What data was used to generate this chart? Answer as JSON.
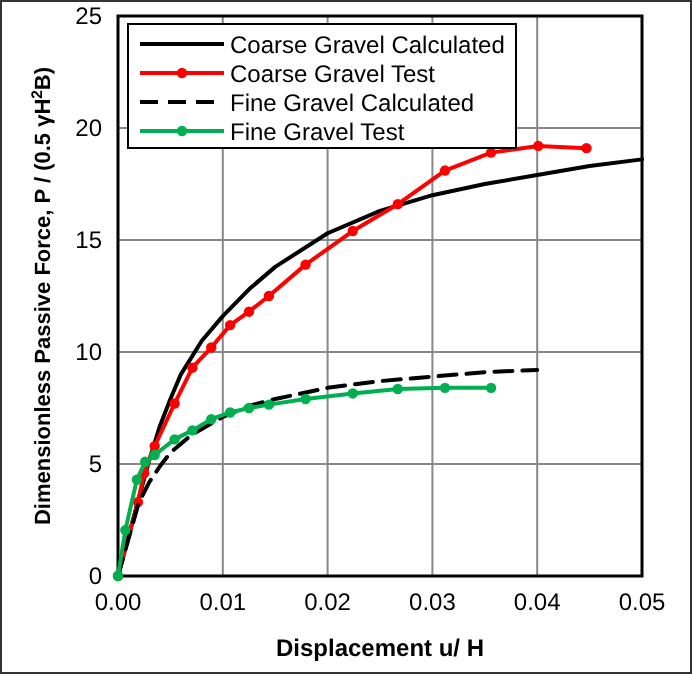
{
  "chart_data": {
    "type": "line",
    "xlabel": "Displacement  u/ H",
    "ylabel": "Dimensionless  Passive Force, P / (0.5 γH$^{2}$B)",
    "xlim": [
      0,
      0.05
    ],
    "xticks": [
      {
        "value": 0,
        "label": "0.00"
      },
      {
        "value": 0.01,
        "label": "0.01"
      },
      {
        "value": 0.02,
        "label": "0.02"
      },
      {
        "value": 0.03,
        "label": "0.03"
      },
      {
        "value": 0.04,
        "label": "0.04"
      },
      {
        "value": 0.05,
        "label": "0.05"
      }
    ],
    "ylim": [
      0,
      25
    ],
    "yticks": [
      0,
      5,
      10,
      15,
      20,
      25
    ],
    "grid": true,
    "legend": "top left",
    "series": [
      {
        "name": "Coarse Gravel Calculated",
        "color": "#000000",
        "marker": "none",
        "line_style": "solid",
        "x": [
          0,
          0.002,
          0.003,
          0.004,
          0.005,
          0.006,
          0.008,
          0.01,
          0.0125,
          0.015,
          0.02,
          0.025,
          0.03,
          0.035,
          0.04,
          0.045,
          0.05
        ],
        "values": [
          0,
          3.5,
          5.2,
          6.7,
          7.9,
          9,
          10.5,
          11.6,
          12.8,
          13.8,
          15.3,
          16.3,
          17,
          17.5,
          17.9,
          18.3,
          18.6
        ]
      },
      {
        "name": "Coarse Gravel Test",
        "color": "#ff0000",
        "marker": "circle",
        "line_style": "solid",
        "x": [
          0,
          0.0019,
          0.0025,
          0.0035,
          0.0054,
          0.0071,
          0.0089,
          0.0107,
          0.0125,
          0.0144,
          0.0179,
          0.0224,
          0.0267,
          0.0312,
          0.0356,
          0.0401,
          0.0447
        ],
        "values": [
          0,
          3.3,
          4.6,
          5.8,
          7.7,
          9.3,
          10.2,
          11.2,
          11.8,
          12.5,
          13.9,
          15.4,
          16.6,
          18.1,
          18.9,
          19.2,
          19.1
        ]
      },
      {
        "name": "Fine Gravel Calculated",
        "color": "#000000",
        "marker": "none",
        "line_style": "dashed",
        "x": [
          0,
          0.002,
          0.003,
          0.004,
          0.005,
          0.007,
          0.01,
          0.0125,
          0.015,
          0.02,
          0.025,
          0.03,
          0.035,
          0.04
        ],
        "values": [
          0,
          3.3,
          4.2,
          4.9,
          5.5,
          6.3,
          7.1,
          7.6,
          7.9,
          8.4,
          8.7,
          8.9,
          9.1,
          9.2
        ]
      },
      {
        "name": "Fine Gravel Test",
        "color": "#00b050",
        "marker": "circle",
        "line_style": "solid",
        "x": [
          0,
          0.0007,
          0.0018,
          0.0026,
          0.0035,
          0.0054,
          0.0071,
          0.0089,
          0.0107,
          0.0125,
          0.0144,
          0.0179,
          0.0224,
          0.0267,
          0.0312,
          0.0356
        ],
        "values": [
          0,
          2.05,
          4.3,
          5.1,
          5.4,
          6.1,
          6.5,
          7,
          7.3,
          7.5,
          7.65,
          7.9,
          8.15,
          8.35,
          8.4,
          8.4
        ]
      }
    ]
  }
}
